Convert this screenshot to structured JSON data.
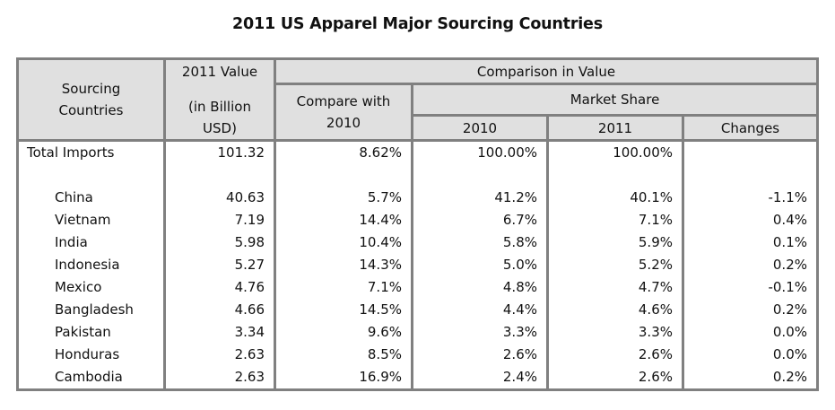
{
  "title": "2011 US Apparel Major Sourcing Countries",
  "header": {
    "sourcing_countries": "Sourcing Countries",
    "value_2011_line1": "2011 Value",
    "value_2011_line2": "(in Billion USD)",
    "comparison_in_value": "Comparison in Value",
    "compare_with_2010": "Compare with 2010",
    "market_share": "Market Share",
    "ms_2010": "2010",
    "ms_2011": "2011",
    "changes": "Changes"
  },
  "total": {
    "name": "Total Imports",
    "value_2011": "101.32",
    "compare_2010": "8.62%",
    "share_2010": "100.00%",
    "share_2011": "100.00%",
    "change": ""
  },
  "rows": [
    {
      "name": "China",
      "value_2011": "40.63",
      "compare_2010": "5.7%",
      "share_2010": "41.2%",
      "share_2011": "40.1%",
      "change": "-1.1%"
    },
    {
      "name": "Vietnam",
      "value_2011": "7.19",
      "compare_2010": "14.4%",
      "share_2010": "6.7%",
      "share_2011": "7.1%",
      "change": "0.4%"
    },
    {
      "name": "India",
      "value_2011": "5.98",
      "compare_2010": "10.4%",
      "share_2010": "5.8%",
      "share_2011": "5.9%",
      "change": "0.1%"
    },
    {
      "name": "Indonesia",
      "value_2011": "5.27",
      "compare_2010": "14.3%",
      "share_2010": "5.0%",
      "share_2011": "5.2%",
      "change": "0.2%"
    },
    {
      "name": "Mexico",
      "value_2011": "4.76",
      "compare_2010": "7.1%",
      "share_2010": "4.8%",
      "share_2011": "4.7%",
      "change": "-0.1%"
    },
    {
      "name": "Bangladesh",
      "value_2011": "4.66",
      "compare_2010": "14.5%",
      "share_2010": "4.4%",
      "share_2011": "4.6%",
      "change": "0.2%"
    },
    {
      "name": "Pakistan",
      "value_2011": "3.34",
      "compare_2010": "9.6%",
      "share_2010": "3.3%",
      "share_2011": "3.3%",
      "change": "0.0%"
    },
    {
      "name": "Honduras",
      "value_2011": "2.63",
      "compare_2010": "8.5%",
      "share_2010": "2.6%",
      "share_2011": "2.6%",
      "change": "0.0%"
    },
    {
      "name": "Cambodia",
      "value_2011": "2.63",
      "compare_2010": "16.9%",
      "share_2010": "2.4%",
      "share_2011": "2.6%",
      "change": "0.2%"
    }
  ],
  "colors": {
    "header_bg": "#e0e0e0",
    "border": "#808080"
  }
}
